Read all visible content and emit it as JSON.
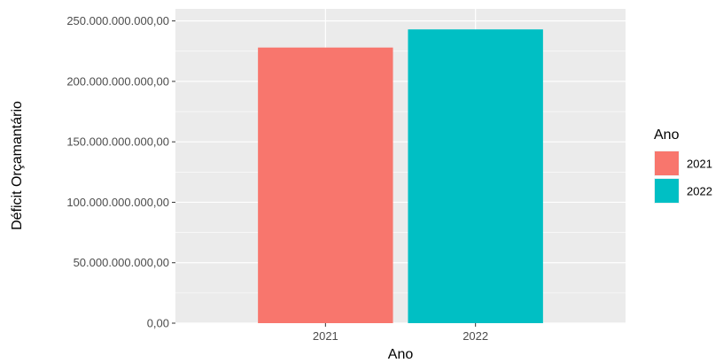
{
  "chart_data": {
    "type": "bar",
    "categories": [
      "2021",
      "2022"
    ],
    "values": [
      228000000000,
      243000000000
    ],
    "colors": [
      "#F8766D",
      "#00BFC4"
    ],
    "xlabel": "Ano",
    "ylabel": "Déficit Orçamantário",
    "ylim": [
      0,
      260000000000
    ],
    "yticks": [
      0,
      50000000000,
      100000000000,
      150000000000,
      200000000000,
      250000000000
    ],
    "ytick_labels": [
      "0,00",
      "50.000.000.000,00",
      "100.000.000.000,00",
      "150.000.000.000,00",
      "200.000.000.000,00",
      "250.000.000.000,00"
    ],
    "grid": true,
    "legend": {
      "title": "Ano",
      "position": "right",
      "entries": [
        "2021",
        "2022"
      ]
    }
  }
}
